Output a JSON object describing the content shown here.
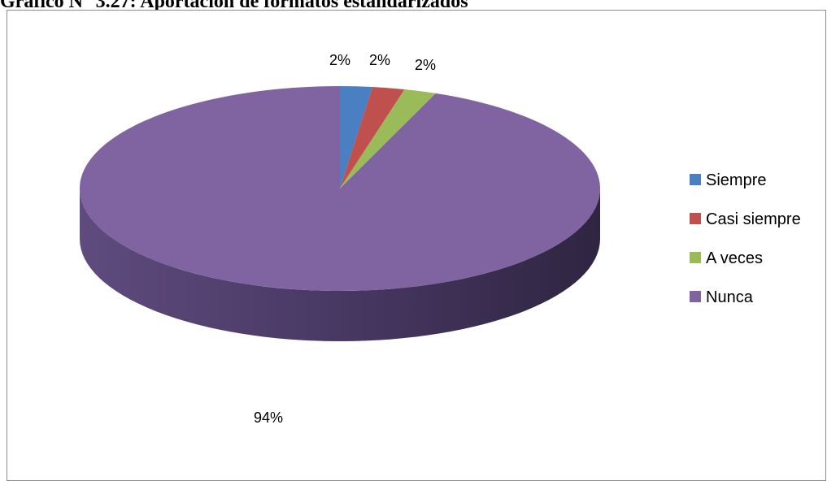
{
  "title": "Gráfico N° 3.27: Aportación de formatos estandarizados",
  "chart_data": {
    "type": "pie",
    "title": "Gráfico N° 3.27: Aportación de formatos estandarizados",
    "style": "3d",
    "categories": [
      "Siempre",
      "Casi siempre",
      "A veces",
      "Nunca"
    ],
    "values": [
      2,
      2,
      2,
      94
    ],
    "labels": [
      "2%",
      "2%",
      "2%",
      "94%"
    ],
    "colors": [
      "#4a7fc1",
      "#c0504d",
      "#9bbb59",
      "#8064a2"
    ],
    "legend": "right"
  }
}
